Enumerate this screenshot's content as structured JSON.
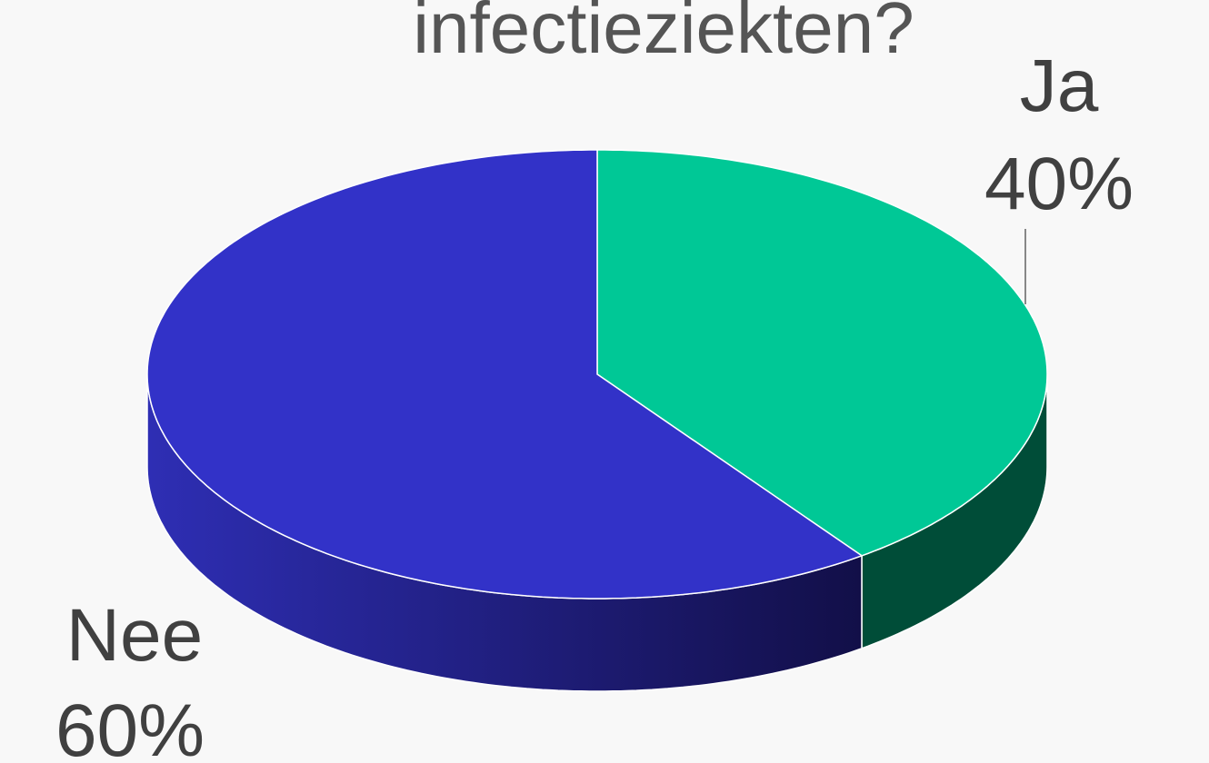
{
  "chart_data": {
    "type": "pie",
    "title": "infectieziekten?",
    "categories": [
      "Ja",
      "Nee"
    ],
    "values": [
      40,
      60
    ],
    "value_labels": [
      "40%",
      "60%"
    ],
    "colors": [
      "#00c896",
      "#3232c8"
    ],
    "side_colors": [
      "#004d38",
      "#1c1c80"
    ]
  }
}
